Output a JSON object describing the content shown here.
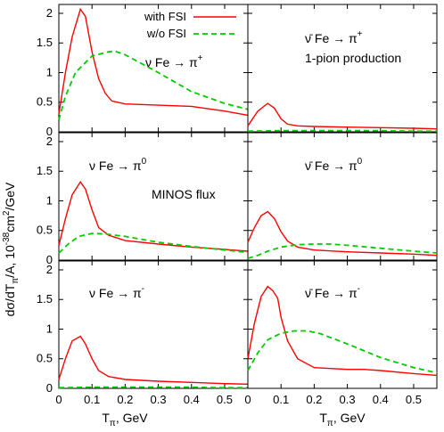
{
  "figure": {
    "ylabel": "dσ/dT",
    "ylabel_sub": "π",
    "ylabel_mid": "/A, 10",
    "ylabel_exp": "-38",
    "ylabel_end": "cm",
    "ylabel_exp2": "2",
    "ylabel_tail": "/GeV",
    "xlabel_main": "T",
    "xlabel_sub": "π",
    "xlabel_tail": ", GeV",
    "annotation_production": "1-pion production",
    "annotation_flux": "MINOS flux",
    "legend": [
      {
        "label": "with FSI",
        "color": "#ff0000",
        "dashed": false
      },
      {
        "label": "w/o FSI",
        "color": "#00cc00",
        "dashed": true
      }
    ]
  },
  "chart_data": [
    {
      "type": "line",
      "panel": "nu-pi-plus",
      "title_main": "ν Fe → π",
      "title_sup": "+",
      "xlim": [
        0,
        0.57
      ],
      "ylim": [
        0,
        2.15
      ],
      "yticks": [
        "0",
        "0.5",
        "1",
        "1.5",
        "2"
      ],
      "series": [
        {
          "name": "with FSI",
          "color": "#ff0000",
          "dashed": false,
          "x": [
            0.0,
            0.02,
            0.04,
            0.065,
            0.08,
            0.1,
            0.12,
            0.14,
            0.16,
            0.2,
            0.3,
            0.4,
            0.5,
            0.57
          ],
          "y": [
            0.3,
            1.0,
            1.6,
            2.07,
            1.95,
            1.35,
            0.9,
            0.65,
            0.52,
            0.47,
            0.45,
            0.43,
            0.35,
            0.28
          ]
        },
        {
          "name": "w/o FSI",
          "color": "#00cc00",
          "dashed": true,
          "x": [
            0.0,
            0.02,
            0.05,
            0.1,
            0.15,
            0.17,
            0.2,
            0.3,
            0.4,
            0.5,
            0.57
          ],
          "y": [
            0.2,
            0.6,
            1.0,
            1.28,
            1.35,
            1.36,
            1.3,
            1.0,
            0.68,
            0.48,
            0.38
          ]
        }
      ]
    },
    {
      "type": "line",
      "panel": "nubar-pi-plus",
      "title_main": "ν̄ Fe → π",
      "title_sup": "+",
      "xlim": [
        0,
        0.57
      ],
      "ylim": [
        0,
        2.15
      ],
      "yticks": [],
      "series": [
        {
          "name": "with FSI",
          "color": "#ff0000",
          "dashed": false,
          "x": [
            0.0,
            0.03,
            0.06,
            0.08,
            0.1,
            0.12,
            0.15,
            0.2,
            0.3,
            0.4,
            0.5,
            0.57
          ],
          "y": [
            0.1,
            0.35,
            0.48,
            0.4,
            0.22,
            0.13,
            0.1,
            0.09,
            0.08,
            0.07,
            0.06,
            0.05
          ]
        },
        {
          "name": "w/o FSI",
          "color": "#00cc00",
          "dashed": true,
          "x": [
            0.0,
            0.1,
            0.2,
            0.3,
            0.4,
            0.5,
            0.57
          ],
          "y": [
            0.01,
            0.02,
            0.02,
            0.02,
            0.02,
            0.01,
            0.01
          ]
        }
      ]
    },
    {
      "type": "line",
      "panel": "nu-pi-zero",
      "title_main": "ν Fe →  π",
      "title_sup": "0",
      "xlim": [
        0,
        0.57
      ],
      "ylim": [
        0,
        2.15
      ],
      "yticks": [
        "0",
        "0.5",
        "1",
        "1.5",
        "2"
      ],
      "series": [
        {
          "name": "with FSI",
          "color": "#ff0000",
          "dashed": false,
          "x": [
            0.0,
            0.02,
            0.04,
            0.065,
            0.08,
            0.1,
            0.12,
            0.15,
            0.2,
            0.3,
            0.4,
            0.5,
            0.57
          ],
          "y": [
            0.25,
            0.7,
            1.1,
            1.32,
            1.2,
            0.85,
            0.55,
            0.42,
            0.33,
            0.27,
            0.22,
            0.18,
            0.15
          ]
        },
        {
          "name": "w/o FSI",
          "color": "#00cc00",
          "dashed": true,
          "x": [
            0.0,
            0.03,
            0.06,
            0.1,
            0.14,
            0.2,
            0.3,
            0.4,
            0.5,
            0.57
          ],
          "y": [
            0.12,
            0.28,
            0.4,
            0.45,
            0.44,
            0.4,
            0.3,
            0.23,
            0.17,
            0.13
          ]
        }
      ]
    },
    {
      "type": "line",
      "panel": "nubar-pi-zero",
      "title_main": "ν̄ Fe → π",
      "title_sup": "0",
      "xlim": [
        0,
        0.57
      ],
      "ylim": [
        0,
        2.15
      ],
      "yticks": [],
      "series": [
        {
          "name": "with FSI",
          "color": "#ff0000",
          "dashed": false,
          "x": [
            0.0,
            0.02,
            0.04,
            0.06,
            0.08,
            0.1,
            0.12,
            0.15,
            0.2,
            0.3,
            0.4,
            0.5,
            0.57
          ],
          "y": [
            0.3,
            0.55,
            0.75,
            0.82,
            0.7,
            0.48,
            0.32,
            0.22,
            0.17,
            0.14,
            0.12,
            0.1,
            0.08
          ]
        },
        {
          "name": "w/o FSI",
          "color": "#00cc00",
          "dashed": true,
          "x": [
            0.0,
            0.03,
            0.06,
            0.1,
            0.15,
            0.2,
            0.25,
            0.3,
            0.4,
            0.5,
            0.57
          ],
          "y": [
            0.03,
            0.08,
            0.15,
            0.22,
            0.26,
            0.27,
            0.27,
            0.25,
            0.2,
            0.15,
            0.12
          ]
        }
      ]
    },
    {
      "type": "line",
      "panel": "nu-pi-minus",
      "title_main": "ν Fe →  π",
      "title_sup": "-",
      "xlim": [
        0,
        0.57
      ],
      "ylim": [
        0,
        2.15
      ],
      "yticks": [
        "0",
        "0.5",
        "1",
        "1.5",
        "2"
      ],
      "xticks": [
        "0",
        "0.1",
        "0.2",
        "0.3",
        "0.4",
        "0.5"
      ],
      "series": [
        {
          "name": "with FSI",
          "color": "#ff0000",
          "dashed": false,
          "x": [
            0.0,
            0.02,
            0.04,
            0.065,
            0.08,
            0.1,
            0.12,
            0.15,
            0.2,
            0.3,
            0.4,
            0.5,
            0.57
          ],
          "y": [
            0.15,
            0.5,
            0.8,
            0.88,
            0.75,
            0.5,
            0.3,
            0.2,
            0.15,
            0.12,
            0.1,
            0.08,
            0.07
          ]
        },
        {
          "name": "w/o FSI",
          "color": "#00cc00",
          "dashed": true,
          "x": [
            0.0,
            0.1,
            0.2,
            0.3,
            0.4,
            0.5,
            0.57
          ],
          "y": [
            0.01,
            0.02,
            0.02,
            0.02,
            0.02,
            0.01,
            0.01
          ]
        }
      ]
    },
    {
      "type": "line",
      "panel": "nubar-pi-minus",
      "title_main": "ν̄ Fe → π",
      "title_sup": "-",
      "xlim": [
        0,
        0.57
      ],
      "ylim": [
        0,
        2.15
      ],
      "yticks": [],
      "xticks": [
        "0",
        "0.1",
        "0.2",
        "0.3",
        "0.4",
        "0.5"
      ],
      "series": [
        {
          "name": "with FSI",
          "color": "#ff0000",
          "dashed": false,
          "x": [
            0.0,
            0.02,
            0.04,
            0.06,
            0.075,
            0.09,
            0.1,
            0.12,
            0.15,
            0.2,
            0.3,
            0.35,
            0.4,
            0.5,
            0.57
          ],
          "y": [
            0.5,
            1.1,
            1.55,
            1.72,
            1.65,
            1.52,
            1.2,
            0.8,
            0.5,
            0.35,
            0.32,
            0.32,
            0.3,
            0.25,
            0.22
          ]
        },
        {
          "name": "w/o FSI",
          "color": "#00cc00",
          "dashed": true,
          "x": [
            0.0,
            0.03,
            0.06,
            0.1,
            0.14,
            0.18,
            0.22,
            0.3,
            0.4,
            0.5,
            0.57
          ],
          "y": [
            0.3,
            0.6,
            0.82,
            0.93,
            0.97,
            0.97,
            0.92,
            0.75,
            0.52,
            0.35,
            0.26
          ]
        }
      ]
    }
  ]
}
